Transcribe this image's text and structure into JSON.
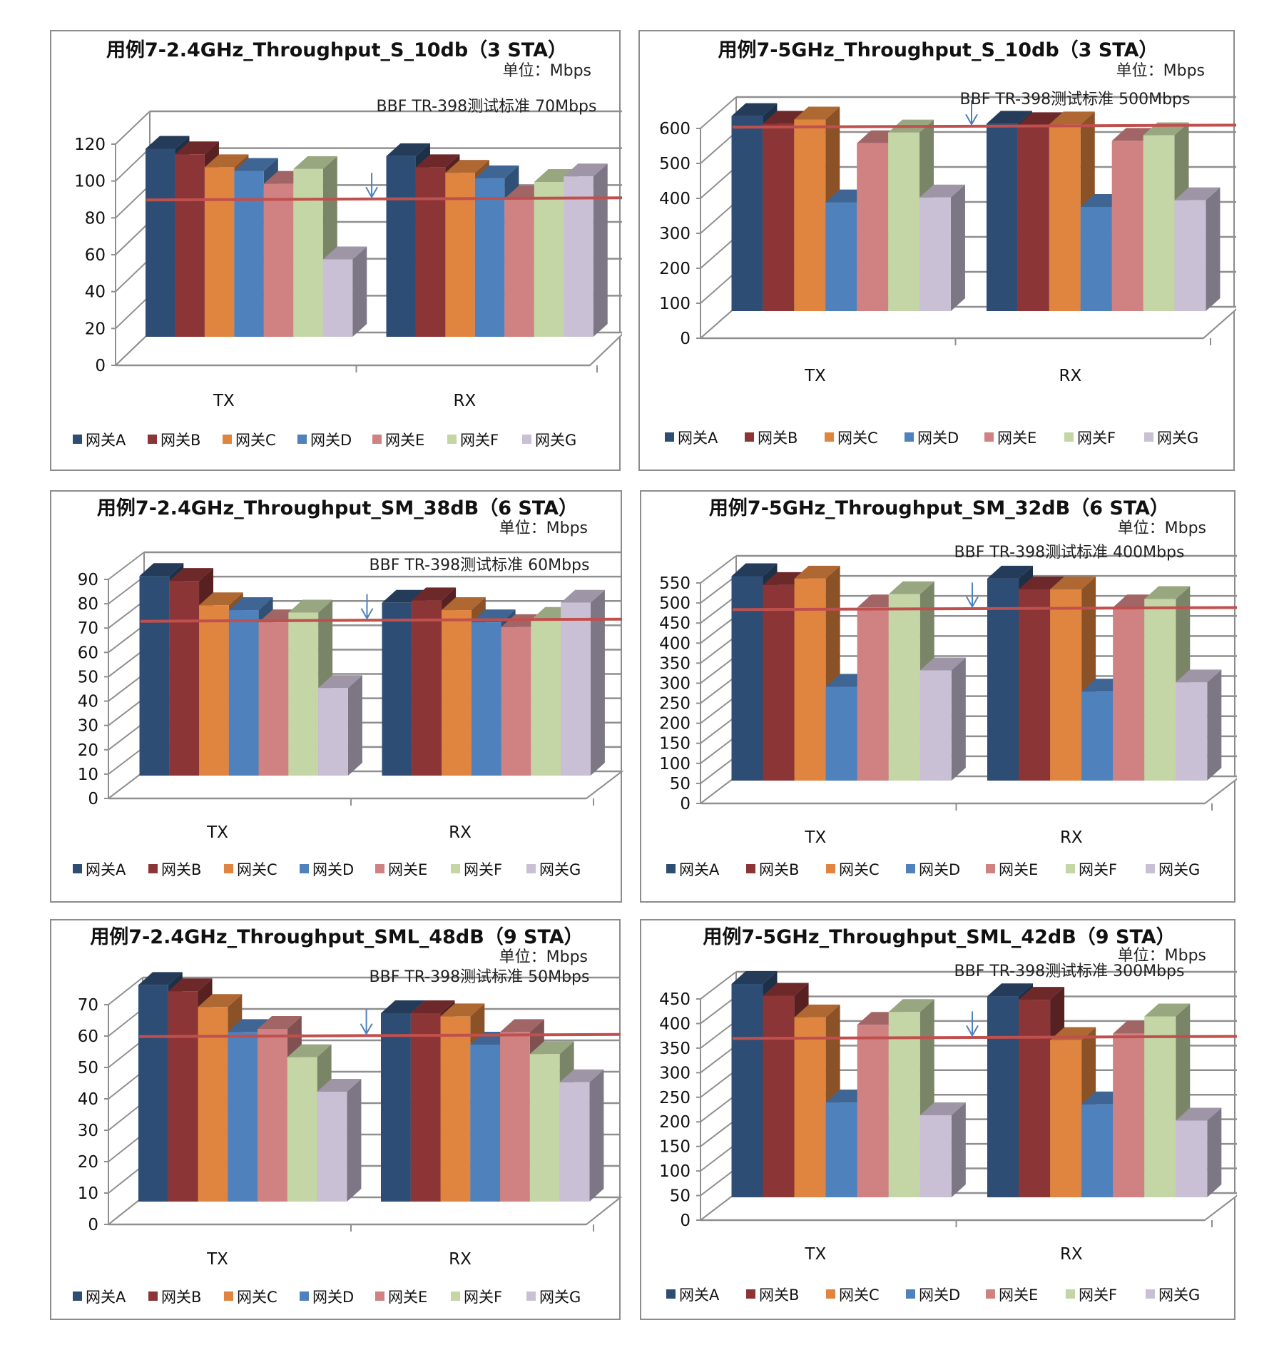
{
  "legend_labels": [
    "网关A",
    "网关B",
    "网关C",
    "网关D",
    "网关E",
    "网关F",
    "网关G"
  ],
  "series_colors": [
    "#2E4D74",
    "#8C3536",
    "#E08540",
    "#4F81BD",
    "#D08283",
    "#C4D6A6",
    "#CAC0D6"
  ],
  "reference_line_color": "#C0504D",
  "arrow_color": "#4F81BD",
  "chart_data": [
    {
      "type": "bar",
      "title": "用例7-2.4GHz_Throughput_S_10db（3 STA）",
      "unit_label": "单位：Mbps",
      "annotation": "BBF TR-398测试标准 70Mbps",
      "categories": [
        "TX",
        "RX"
      ],
      "ylim": [
        0,
        120
      ],
      "yticks": [
        0,
        20,
        40,
        60,
        80,
        100,
        120
      ],
      "reference_line": 75,
      "grid": true,
      "legend": "bottom",
      "series": [
        {
          "name": "网关A",
          "values": [
            102,
            98
          ]
        },
        {
          "name": "网关B",
          "values": [
            99,
            92
          ]
        },
        {
          "name": "网关C",
          "values": [
            92,
            89
          ]
        },
        {
          "name": "网关D",
          "values": [
            90,
            86
          ]
        },
        {
          "name": "网关E",
          "values": [
            83,
            75
          ]
        },
        {
          "name": "网关F",
          "values": [
            91,
            84
          ]
        },
        {
          "name": "网关G",
          "values": [
            42,
            87
          ]
        }
      ]
    },
    {
      "type": "bar",
      "title": "用例7-5GHz_Throughput_S_10db（3 STA）",
      "unit_label": "单位：Mbps",
      "annotation": "BBF TR-398测试标准 500Mbps",
      "categories": [
        "TX",
        "RX"
      ],
      "ylim": [
        0,
        600
      ],
      "yticks": [
        0,
        100,
        200,
        300,
        400,
        500,
        600
      ],
      "reference_line": 530,
      "grid": true,
      "legend": "bottom",
      "series": [
        {
          "name": "网关A",
          "values": [
            558,
            536
          ]
        },
        {
          "name": "网关B",
          "values": [
            536,
            532
          ]
        },
        {
          "name": "网关C",
          "values": [
            548,
            534
          ]
        },
        {
          "name": "网关D",
          "values": [
            311,
            298
          ]
        },
        {
          "name": "网关E",
          "values": [
            480,
            487
          ]
        },
        {
          "name": "网关F",
          "values": [
            511,
            503
          ]
        },
        {
          "name": "网关G",
          "values": [
            325,
            317
          ]
        }
      ]
    },
    {
      "type": "bar",
      "title": "用例7-2.4GHz_Throughput_SM_38dB（6 STA）",
      "unit_label": "单位：Mbps",
      "annotation": "BBF TR-398测试标准 60Mbps",
      "categories": [
        "TX",
        "RX"
      ],
      "ylim": [
        0,
        90
      ],
      "yticks": [
        0,
        10,
        20,
        30,
        40,
        50,
        60,
        70,
        80,
        90
      ],
      "reference_line": 64,
      "grid": true,
      "legend": "bottom",
      "series": [
        {
          "name": "网关A",
          "values": [
            82,
            71
          ]
        },
        {
          "name": "网关B",
          "values": [
            80,
            72
          ]
        },
        {
          "name": "网关C",
          "values": [
            70,
            68
          ]
        },
        {
          "name": "网关D",
          "values": [
            68,
            63
          ]
        },
        {
          "name": "网关E",
          "values": [
            63,
            61
          ]
        },
        {
          "name": "网关F",
          "values": [
            67,
            64
          ]
        },
        {
          "name": "网关G",
          "values": [
            36,
            71
          ]
        }
      ]
    },
    {
      "type": "bar",
      "title": "用例7-5GHz_Throughput_SM_32dB（6 STA）",
      "unit_label": "单位：Mbps",
      "annotation": "BBF TR-398测试标准 400Mbps",
      "categories": [
        "TX",
        "RX"
      ],
      "ylim": [
        0,
        550
      ],
      "yticks": [
        0,
        50,
        100,
        150,
        200,
        250,
        300,
        350,
        400,
        450,
        500,
        550
      ],
      "reference_line": 430,
      "grid": true,
      "legend": "bottom",
      "series": [
        {
          "name": "网关A",
          "values": [
            510,
            504
          ]
        },
        {
          "name": "网关B",
          "values": [
            488,
            477
          ]
        },
        {
          "name": "网关C",
          "values": [
            504,
            477
          ]
        },
        {
          "name": "网关D",
          "values": [
            234,
            222
          ]
        },
        {
          "name": "网关E",
          "values": [
            432,
            432
          ]
        },
        {
          "name": "网关F",
          "values": [
            465,
            453
          ]
        },
        {
          "name": "网关G",
          "values": [
            275,
            245
          ]
        }
      ]
    },
    {
      "type": "bar",
      "title": "用例7-2.4GHz_Throughput_SML_48dB（9 STA）",
      "unit_label": "单位：Mbps",
      "annotation": "BBF TR-398测试标准 50Mbps",
      "categories": [
        "TX",
        "RX"
      ],
      "ylim": [
        0,
        70
      ],
      "yticks": [
        0,
        10,
        20,
        30,
        40,
        50,
        60,
        70
      ],
      "reference_line": 53,
      "grid": true,
      "legend": "bottom",
      "series": [
        {
          "name": "网关A",
          "values": [
            69,
            60
          ]
        },
        {
          "name": "网关B",
          "values": [
            67,
            60
          ]
        },
        {
          "name": "网关C",
          "values": [
            62,
            59
          ]
        },
        {
          "name": "网关D",
          "values": [
            54,
            50
          ]
        },
        {
          "name": "网关E",
          "values": [
            55,
            54
          ]
        },
        {
          "name": "网关F",
          "values": [
            46,
            47
          ]
        },
        {
          "name": "网关G",
          "values": [
            35,
            38
          ]
        }
      ]
    },
    {
      "type": "bar",
      "title": "用例7-5GHz_Throughput_SML_42dB（9 STA）",
      "unit_label": "单位：Mbps",
      "annotation": "BBF TR-398测试标准 300Mbps",
      "categories": [
        "TX",
        "RX"
      ],
      "ylim": [
        0,
        450
      ],
      "yticks": [
        0,
        50,
        100,
        150,
        200,
        250,
        300,
        350,
        400,
        450
      ],
      "reference_line": 326,
      "grid": true,
      "legend": "bottom",
      "series": [
        {
          "name": "网关A",
          "values": [
            434,
            409
          ]
        },
        {
          "name": "网关B",
          "values": [
            410,
            402
          ]
        },
        {
          "name": "网关C",
          "values": [
            366,
            320
          ]
        },
        {
          "name": "网关D",
          "values": [
            193,
            189
          ]
        },
        {
          "name": "网关E",
          "values": [
            351,
            333
          ]
        },
        {
          "name": "网关F",
          "values": [
            377,
            368
          ]
        },
        {
          "name": "网关G",
          "values": [
            167,
            156
          ]
        }
      ]
    }
  ]
}
